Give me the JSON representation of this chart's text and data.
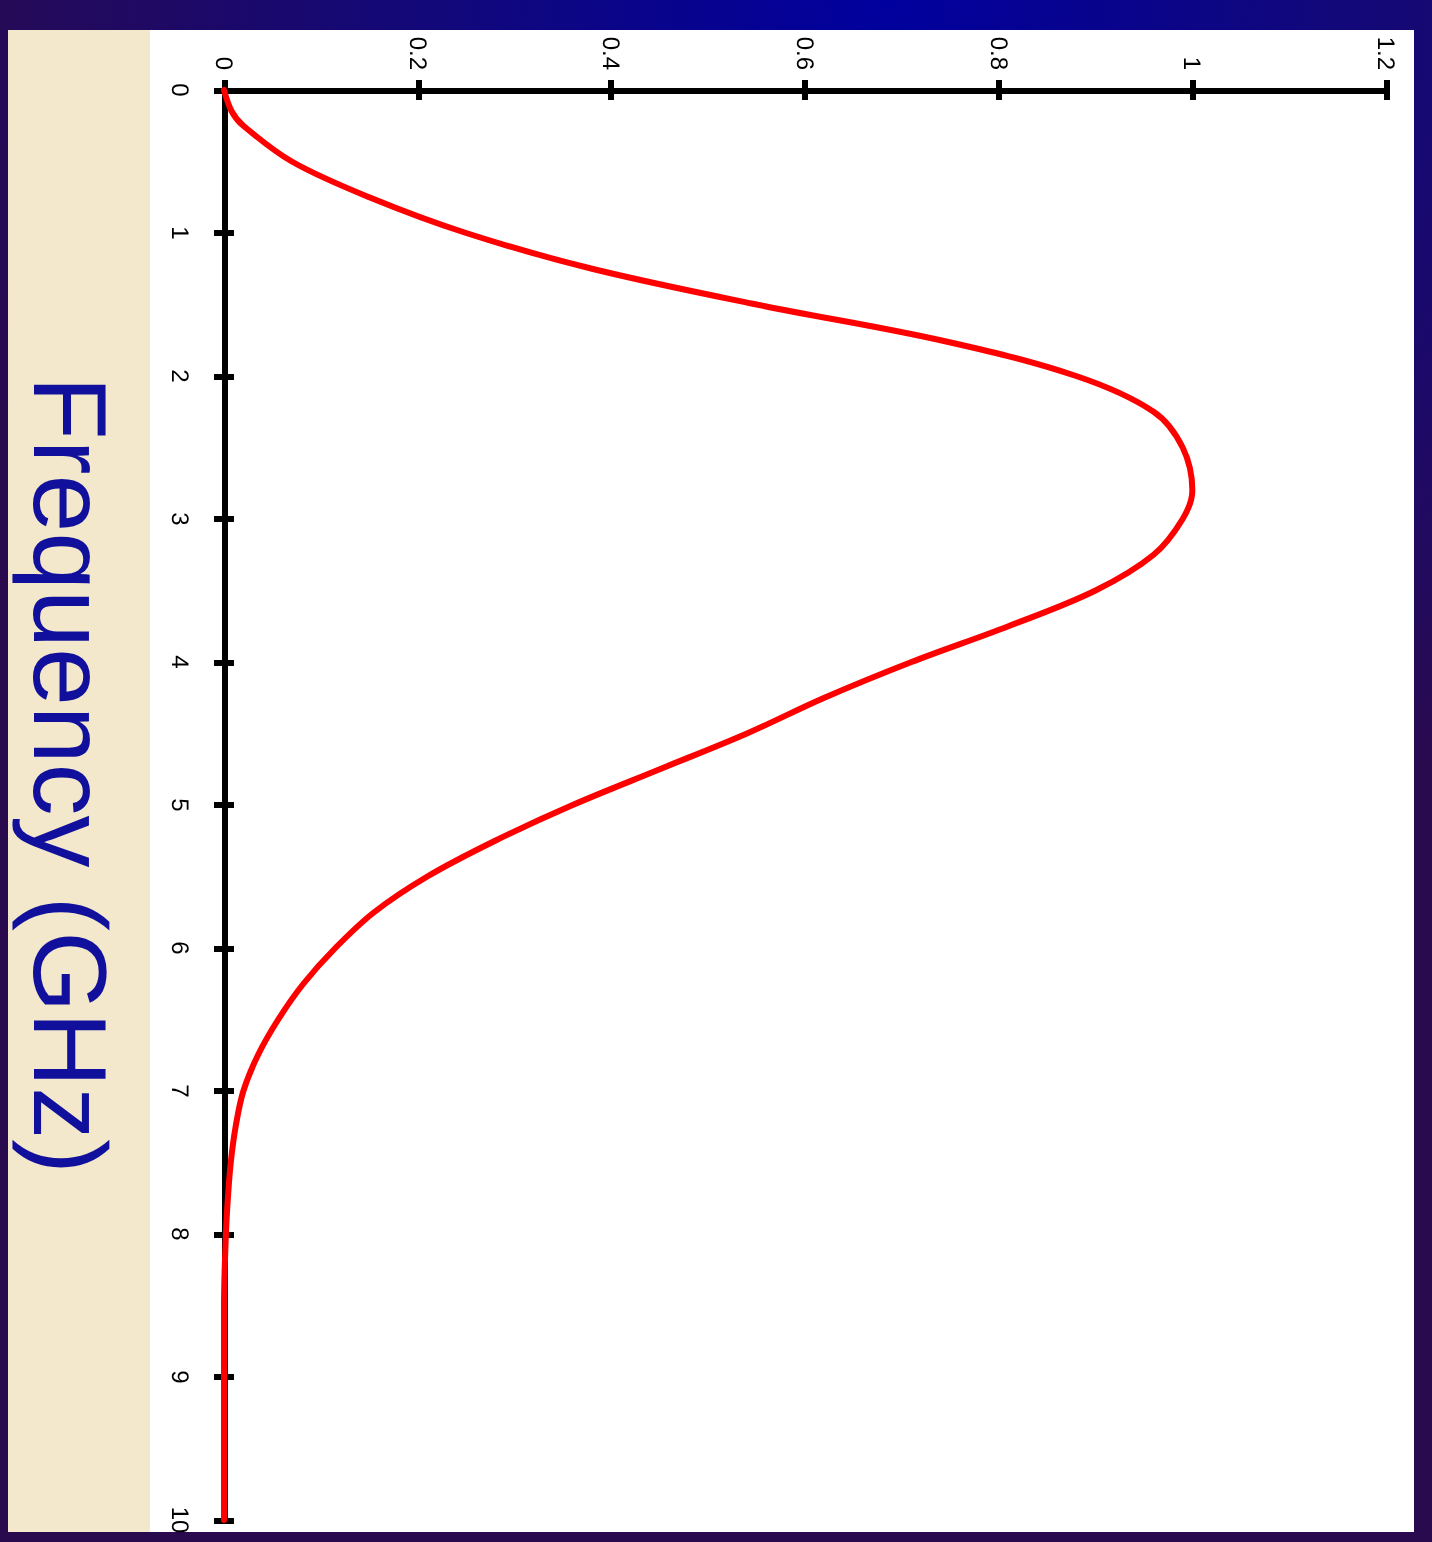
{
  "chart_data": {
    "type": "line",
    "ylabel": "Frequency (GHz)",
    "x": [
      0,
      0.008,
      0.02,
      0.07,
      0.15,
      0.25,
      0.38,
      0.55,
      0.74,
      0.88,
      0.96,
      0.99,
      1.0,
      0.99,
      0.96,
      0.9,
      0.81,
      0.71,
      0.62,
      0.54,
      0.45,
      0.36,
      0.28,
      0.21,
      0.155,
      0.115,
      0.082,
      0.056,
      0.035,
      0.02,
      0.012,
      0.007,
      0.004,
      0.002,
      0,
      0,
      0
    ],
    "values": [
      0,
      0.15,
      0.25,
      0.5,
      0.75,
      1,
      1.25,
      1.5,
      1.75,
      2,
      2.25,
      2.5,
      2.8,
      3,
      3.25,
      3.5,
      3.75,
      4,
      4.25,
      4.5,
      4.75,
      5,
      5.25,
      5.5,
      5.75,
      6,
      6.25,
      6.5,
      6.75,
      7,
      7.25,
      7.5,
      7.75,
      8,
      8.5,
      9,
      10
    ],
    "color": "#ff0000",
    "xlim": [
      0,
      1.2
    ],
    "xticks": [
      0,
      0.2,
      0.4,
      0.6,
      0.8,
      1,
      1.2
    ],
    "ylim": [
      10,
      0
    ],
    "yticks": [
      0,
      1,
      2,
      3,
      4,
      5,
      6,
      7,
      8,
      9,
      10
    ],
    "grid": false,
    "marker": "none",
    "line_style": "solid"
  }
}
